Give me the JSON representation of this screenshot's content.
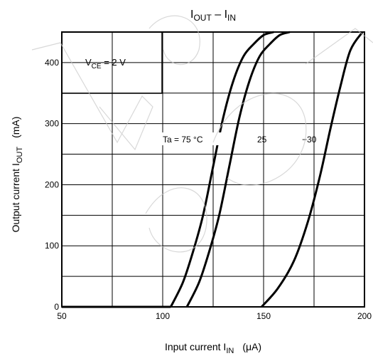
{
  "chart_data": {
    "type": "line",
    "title": {
      "main": "I",
      "sub1": "OUT",
      "sep": " – I",
      "sub2": "IN"
    },
    "xlabel": {
      "main": "Input current   I",
      "sub": "IN",
      "unit": "(μA)"
    },
    "ylabel": {
      "main": "Output current   I",
      "sub": "OUT",
      "unit": "(mA)"
    },
    "xlim": [
      50,
      200
    ],
    "ylim": [
      0,
      450
    ],
    "x_ticks": [
      "50",
      "100",
      "150",
      "200"
    ],
    "y_ticks": [
      "0",
      "100",
      "200",
      "300",
      "400"
    ],
    "grid": true,
    "annotations": {
      "vce": {
        "main": "V",
        "sub": "CE",
        "rest": " = 2 V"
      },
      "ta_label": "Ta = 75 °C",
      "label_25": "25",
      "label_m30": "−30"
    },
    "series": [
      {
        "name": "Ta = 75 °C",
        "x": [
          104,
          110,
          115,
          120,
          125,
          130,
          135,
          140,
          145,
          150,
          155
        ],
        "y": [
          0,
          40,
          90,
          150,
          230,
          310,
          370,
          410,
          430,
          445,
          450
        ]
      },
      {
        "name": "25",
        "x": [
          112,
          118,
          123,
          128,
          133,
          138,
          143,
          148,
          153,
          158,
          163
        ],
        "y": [
          0,
          40,
          90,
          150,
          230,
          310,
          370,
          410,
          430,
          445,
          450
        ]
      },
      {
        "name": "−30",
        "x": [
          149,
          157,
          165,
          172,
          178,
          183,
          188,
          193,
          199
        ],
        "y": [
          0,
          30,
          75,
          140,
          215,
          290,
          360,
          420,
          450
        ]
      }
    ]
  }
}
